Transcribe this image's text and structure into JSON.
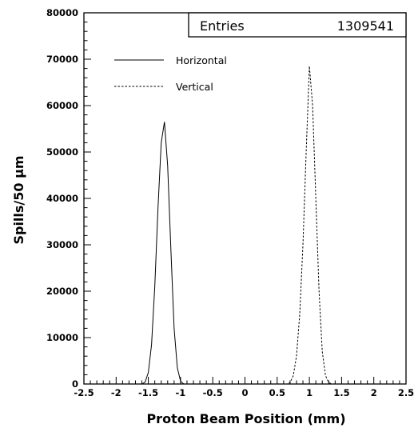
{
  "chart_data": {
    "type": "line",
    "title": "",
    "xlabel": "Proton Beam Position (mm)",
    "ylabel": "Spills/50 µm",
    "xlim": [
      -2.5,
      2.5
    ],
    "ylim": [
      0,
      80000
    ],
    "x_ticks": [
      "-2.5",
      "-2",
      "-1.5",
      "-1",
      "-0.5",
      "0",
      "0.5",
      "1",
      "1.5",
      "2",
      "2.5"
    ],
    "y_ticks": [
      "0",
      "10000",
      "20000",
      "30000",
      "40000",
      "50000",
      "60000",
      "70000",
      "80000"
    ],
    "grid": false,
    "legend_position": "top-left",
    "stats_box": {
      "label": "Entries",
      "value": "1309541"
    },
    "series": [
      {
        "name": "Horizontal",
        "style": "solid",
        "x": [
          -1.6,
          -1.55,
          -1.5,
          -1.45,
          -1.4,
          -1.35,
          -1.3,
          -1.25,
          -1.2,
          -1.15,
          -1.1,
          -1.05,
          -1.0,
          -0.95
        ],
        "y": [
          0,
          400,
          2500,
          8500,
          21000,
          38000,
          52000,
          56500,
          47000,
          29000,
          12000,
          3500,
          600,
          0
        ]
      },
      {
        "name": "Vertical",
        "style": "dashed",
        "x": [
          0.65,
          0.7,
          0.75,
          0.8,
          0.85,
          0.9,
          0.95,
          1.0,
          1.05,
          1.1,
          1.15,
          1.2,
          1.25,
          1.3,
          1.35
        ],
        "y": [
          0,
          300,
          1800,
          6000,
          15000,
          30000,
          50000,
          68500,
          60000,
          40000,
          20000,
          7000,
          1800,
          300,
          0
        ]
      }
    ]
  }
}
